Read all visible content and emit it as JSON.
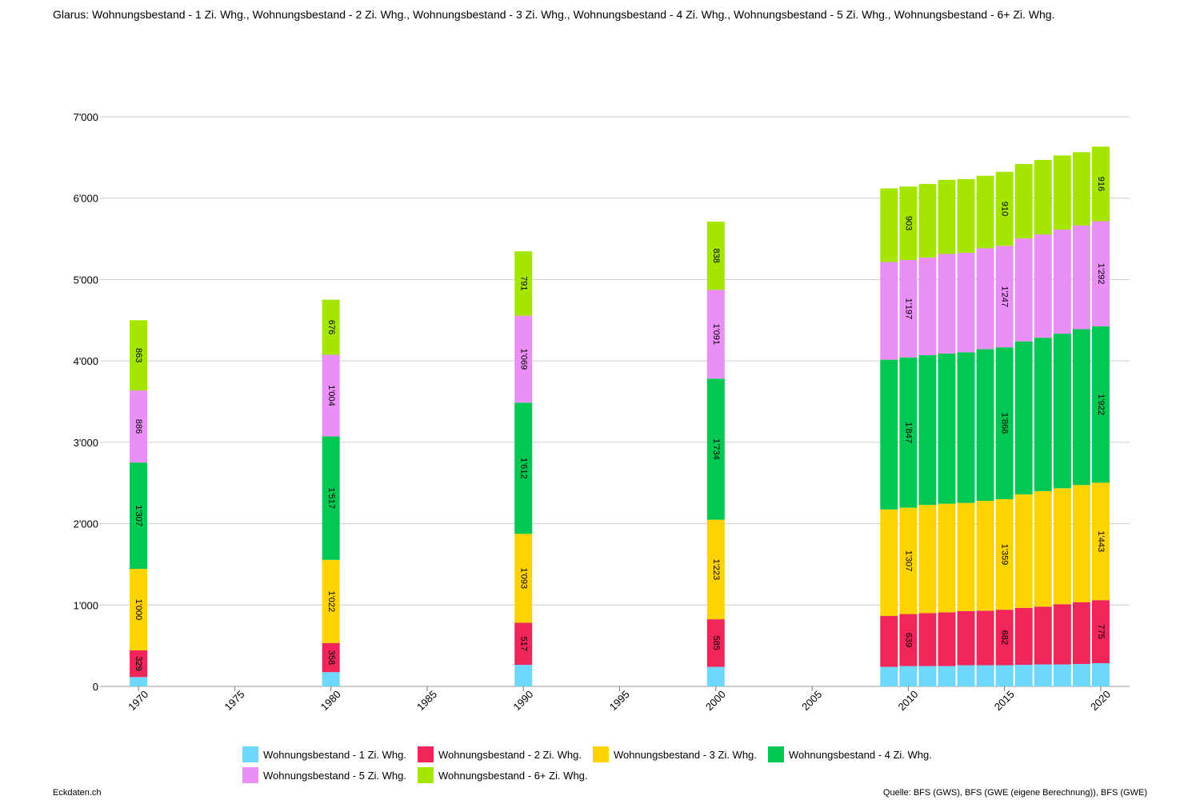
{
  "title": "Glarus: Wohnungsbestand - 1 Zi. Whg., Wohnungsbestand - 2 Zi. Whg., Wohnungsbestand - 3 Zi. Whg., Wohnungsbestand - 4 Zi. Whg., Wohnungsbestand - 5 Zi. Whg., Wohnungsbestand - 6+ Zi. Whg.",
  "footer": {
    "left": "Eckdaten.ch",
    "right": "Quelle: BFS (GWS), BFS (GWE (eigene Berechnung)), BFS (GWE)"
  },
  "chart_data": {
    "type": "bar",
    "stacked": true,
    "x": [
      1970,
      1980,
      1990,
      2000,
      2009,
      2010,
      2011,
      2012,
      2013,
      2014,
      2015,
      2016,
      2017,
      2018,
      2019,
      2020
    ],
    "xlim": [
      1968,
      2021.5
    ],
    "xticks": [
      "1970",
      "1975",
      "1980",
      "1985",
      "1990",
      "1995",
      "2000",
      "2005",
      "2010",
      "2015",
      "2020"
    ],
    "ylim": [
      0,
      7000
    ],
    "yticks": [
      "0",
      "1'000",
      "2'000",
      "3'000",
      "4'000",
      "5'000",
      "6'000",
      "7'000"
    ],
    "grid": true,
    "legend_position": "bottom",
    "series": [
      {
        "name": "Wohnungsbestand - 1 Zi. Whg.",
        "color": "#6ed8fa",
        "values": [
          115,
          175,
          265,
          240,
          240,
          250,
          250,
          250,
          260,
          260,
          260,
          265,
          270,
          270,
          275,
          285
        ],
        "labels": [
          "",
          "",
          "",
          "",
          "",
          "",
          "",
          "",
          "",
          "",
          "",
          "",
          "",
          "",
          "",
          ""
        ]
      },
      {
        "name": "Wohnungsbestand - 2 Zi. Whg.",
        "color": "#f0255a",
        "values": [
          329,
          358,
          517,
          585,
          625,
          639,
          650,
          660,
          665,
          670,
          682,
          700,
          710,
          740,
          760,
          775
        ],
        "labels": [
          "329",
          "358",
          "517",
          "585",
          "",
          "639",
          "",
          "",
          "",
          "",
          "682",
          "",
          "",
          "",
          "",
          "775"
        ]
      },
      {
        "name": "Wohnungsbestand - 3 Zi. Whg.",
        "color": "#ffd300",
        "values": [
          1000,
          1022,
          1093,
          1223,
          1310,
          1307,
          1330,
          1335,
          1330,
          1350,
          1359,
          1395,
          1420,
          1425,
          1440,
          1443
        ],
        "labels": [
          "1'000",
          "1'022",
          "1'093",
          "1'223",
          "",
          "1'307",
          "",
          "",
          "",
          "",
          "1'359",
          "",
          "",
          "",
          "",
          "1'443"
        ]
      },
      {
        "name": "Wohnungsbestand - 4 Zi. Whg.",
        "color": "#00c853",
        "values": [
          1307,
          1517,
          1612,
          1734,
          1840,
          1847,
          1840,
          1845,
          1850,
          1865,
          1866,
          1880,
          1885,
          1900,
          1915,
          1922
        ],
        "labels": [
          "1'307",
          "1'517",
          "1'612",
          "1'734",
          "",
          "1'847",
          "",
          "",
          "",
          "",
          "1'866",
          "",
          "",
          "",
          "",
          "1'922"
        ]
      },
      {
        "name": "Wohnungsbestand - 5 Zi. Whg.",
        "color": "#e98ff5",
        "values": [
          886,
          1004,
          1069,
          1091,
          1200,
          1197,
          1200,
          1225,
          1225,
          1240,
          1247,
          1265,
          1270,
          1280,
          1275,
          1292
        ],
        "labels": [
          "886",
          "1'004",
          "1'069",
          "1'091",
          "",
          "1'197",
          "",
          "",
          "",
          "",
          "1'247",
          "",
          "",
          "",
          "",
          "1'292"
        ]
      },
      {
        "name": "Wohnungsbestand - 6+ Zi. Whg.",
        "color": "#a5e600",
        "values": [
          863,
          676,
          791,
          838,
          905,
          903,
          905,
          910,
          905,
          890,
          910,
          915,
          915,
          910,
          900,
          916
        ],
        "labels": [
          "863",
          "676",
          "791",
          "838",
          "",
          "903",
          "",
          "",
          "",
          "",
          "910",
          "",
          "",
          "",
          "",
          "916"
        ]
      }
    ]
  }
}
